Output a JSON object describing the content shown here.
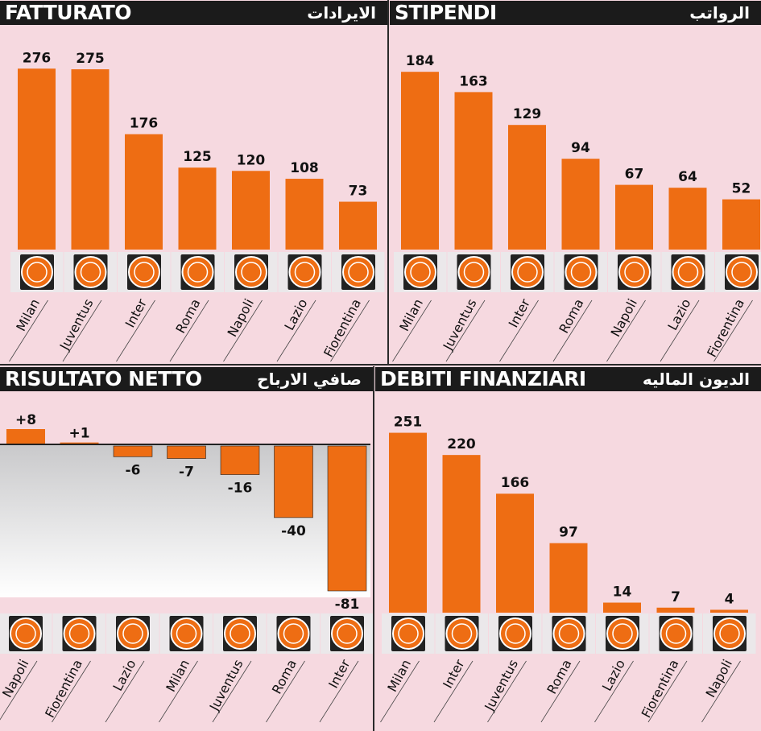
{
  "colors": {
    "bar": "#ee6d13",
    "panel_bg": "#f6d9e0",
    "header_bg": "#1b1b1b",
    "logo_bg": "#ebe8ea",
    "logo_tile": "#7a5a4a",
    "text": "#111111"
  },
  "panels": [
    {
      "id": "fatturato",
      "title": "FATTURATO",
      "subtitle": "الايرادات",
      "chart_data": {
        "type": "bar",
        "categories": [
          "Milan",
          "Juventus",
          "Inter",
          "Roma",
          "Napoli",
          "Lazio",
          "Fiorentina"
        ],
        "values": [
          276,
          275,
          176,
          125,
          120,
          108,
          73
        ],
        "value_labels": [
          "276",
          "275",
          "176",
          "125",
          "120",
          "108",
          "73"
        ],
        "ylim": [
          0,
          280
        ]
      }
    },
    {
      "id": "stipendi",
      "title": "STIPENDI",
      "subtitle": "الرواتب",
      "chart_data": {
        "type": "bar",
        "categories": [
          "Milan",
          "Juventus",
          "Inter",
          "Roma",
          "Napoli",
          "Lazio",
          "Fiorentina"
        ],
        "values": [
          184,
          163,
          129,
          94,
          67,
          64,
          52
        ],
        "value_labels": [
          "184",
          "163",
          "129",
          "94",
          "67",
          "64",
          "52"
        ],
        "ylim": [
          0,
          190
        ]
      }
    },
    {
      "id": "risultato",
      "title": "RISULTATO NETTO",
      "subtitle": "صافي الارباح",
      "chart_data": {
        "type": "bar",
        "categories": [
          "Napoli",
          "Fiorentina",
          "Lazio",
          "Milan",
          "Juventus",
          "Roma",
          "Inter"
        ],
        "values": [
          8,
          1,
          -6,
          -7,
          -16,
          -40,
          -81
        ],
        "value_labels": [
          "+8",
          "+1",
          "-6",
          "-7",
          "-16",
          "-40",
          "-81"
        ],
        "ylim": [
          -81,
          8
        ]
      }
    },
    {
      "id": "debiti",
      "title": "DEBITI FINANZIARI",
      "subtitle": "الديون الماليه",
      "chart_data": {
        "type": "bar",
        "categories": [
          "Milan",
          "Inter",
          "Juventus",
          "Roma",
          "Lazio",
          "Fiorentina",
          "Napoli"
        ],
        "values": [
          251,
          220,
          166,
          97,
          14,
          7,
          4
        ],
        "value_labels": [
          "251",
          "220",
          "166",
          "97",
          "14",
          "7",
          "4"
        ],
        "ylim": [
          0,
          255
        ]
      }
    }
  ]
}
